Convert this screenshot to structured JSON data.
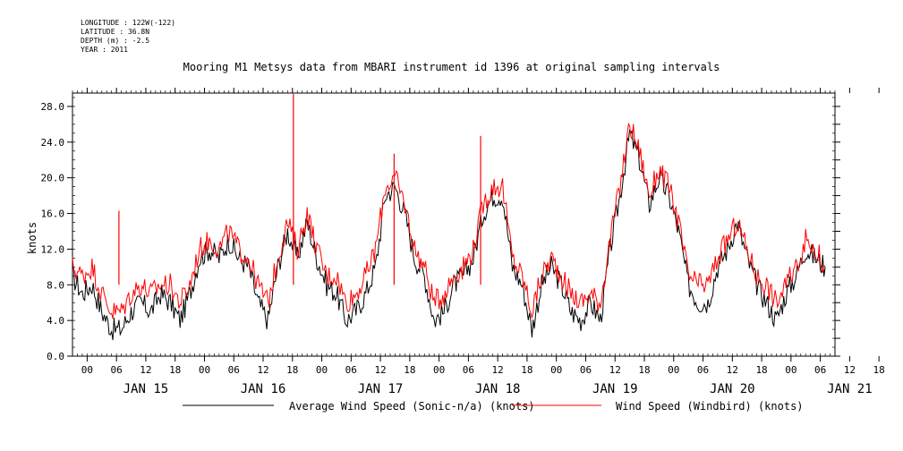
{
  "metadata": {
    "longitude": "LONGITUDE : 122W(-122)",
    "latitude": "LATITUDE : 36.8N",
    "depth": "DEPTH (m) : -2.5",
    "year": "YEAR : 2011"
  },
  "chart_data": {
    "type": "line",
    "title": "Mooring M1 Metsys data from MBARI instrument id 1396 at original sampling intervals",
    "ylabel": "knots",
    "xlabel": "",
    "ylim": [
      0,
      29.5
    ],
    "xlim": [
      -3,
      153
    ],
    "yticks": [
      "0.0",
      "4.0",
      "8.0",
      "12.0",
      "16.0",
      "20.0",
      "24.0",
      "28.0"
    ],
    "xtick_hours": [
      "00",
      "06",
      "12",
      "18",
      "00",
      "06",
      "12",
      "18",
      "00",
      "06",
      "12",
      "18",
      "00",
      "06",
      "12",
      "18",
      "00",
      "06",
      "12",
      "18",
      "00",
      "06",
      "12",
      "18",
      "00",
      "06",
      "12",
      "18"
    ],
    "day_labels": [
      "JAN 15",
      "JAN 16",
      "JAN 17",
      "JAN 18",
      "JAN 19",
      "JAN 20",
      "JAN 21"
    ],
    "x_units": "hours since JAN 15 00:00",
    "series": [
      {
        "name": "Average Wind Speed (Sonic-n/a) (knots)",
        "color": "#000000",
        "x": [
          -3,
          -1,
          1,
          3,
          5,
          7,
          9,
          11,
          13,
          15,
          17,
          19,
          21,
          23,
          25,
          27,
          29,
          31,
          33,
          35,
          37,
          39,
          41,
          43,
          45,
          47,
          49,
          51,
          53,
          55,
          57,
          59,
          61,
          63,
          65,
          67,
          69,
          71,
          73,
          75,
          77,
          79,
          81,
          83,
          85,
          87,
          89,
          91,
          93,
          95,
          97,
          99,
          101,
          103,
          105,
          107,
          109,
          111,
          113,
          115,
          117,
          119,
          121,
          123,
          125,
          127,
          129,
          131,
          133,
          135,
          137,
          139,
          141,
          143,
          145,
          147,
          149,
          151
        ],
        "values": [
          9,
          7,
          8,
          5,
          3,
          3,
          5,
          6,
          5,
          7,
          6,
          4,
          7,
          11,
          12,
          11,
          13,
          11,
          10,
          6,
          4,
          10,
          14,
          11,
          15,
          11,
          8,
          7,
          4,
          5,
          7,
          10,
          18,
          19,
          16,
          11,
          9,
          4,
          5,
          8,
          9,
          11,
          16,
          18,
          18,
          10,
          8,
          3,
          8,
          10,
          8,
          5,
          4,
          6,
          4,
          12,
          18,
          25,
          22,
          17,
          20,
          18,
          14,
          8,
          6,
          6,
          10,
          12,
          15,
          11,
          8,
          6,
          4,
          7,
          9,
          12,
          11,
          10
        ]
      },
      {
        "name": "Wind Speed (Windbird) (knots)",
        "color": "#ff0000",
        "x": [
          -3,
          -1,
          1,
          3,
          5,
          7,
          9,
          11,
          13,
          15,
          17,
          19,
          21,
          23,
          25,
          27,
          29,
          31,
          33,
          35,
          37,
          39,
          41,
          43,
          45,
          47,
          49,
          51,
          53,
          55,
          57,
          59,
          61,
          63,
          65,
          67,
          69,
          71,
          73,
          75,
          77,
          79,
          81,
          83,
          85,
          87,
          89,
          91,
          93,
          95,
          97,
          99,
          101,
          103,
          105,
          107,
          109,
          111,
          113,
          115,
          117,
          119,
          121,
          123,
          125,
          127,
          129,
          131,
          133,
          135,
          137,
          139,
          141,
          143,
          145,
          147,
          149,
          151
        ],
        "values": [
          10,
          9,
          10,
          7,
          5,
          5,
          7,
          8,
          7,
          8,
          8,
          6,
          8,
          12,
          13,
          12,
          14,
          12,
          11,
          8,
          6,
          11,
          15,
          12,
          16,
          12,
          9,
          9,
          6,
          7,
          9,
          12,
          19,
          20,
          17,
          12,
          10,
          6,
          7,
          9,
          10,
          12,
          17,
          19,
          19,
          11,
          9,
          5,
          9,
          11,
          9,
          7,
          6,
          7,
          6,
          13,
          19,
          26,
          23,
          18,
          21,
          19,
          15,
          9,
          8,
          8,
          11,
          13,
          15,
          12,
          9,
          8,
          6,
          8,
          10,
          13,
          12,
          10
        ]
      }
    ],
    "spikes": [
      {
        "x": 6.5,
        "y": 16.3
      },
      {
        "x": 42.2,
        "y": 29.4
      },
      {
        "x": 62.8,
        "y": 22.7
      },
      {
        "x": 80.5,
        "y": 24.7
      }
    ]
  },
  "legend": {
    "entries": [
      {
        "label": "Average Wind Speed (Sonic-n/a) (knots)",
        "color": "#000000"
      },
      {
        "label": "Wind Speed (Windbird) (knots)",
        "color": "#ff0000"
      }
    ]
  }
}
